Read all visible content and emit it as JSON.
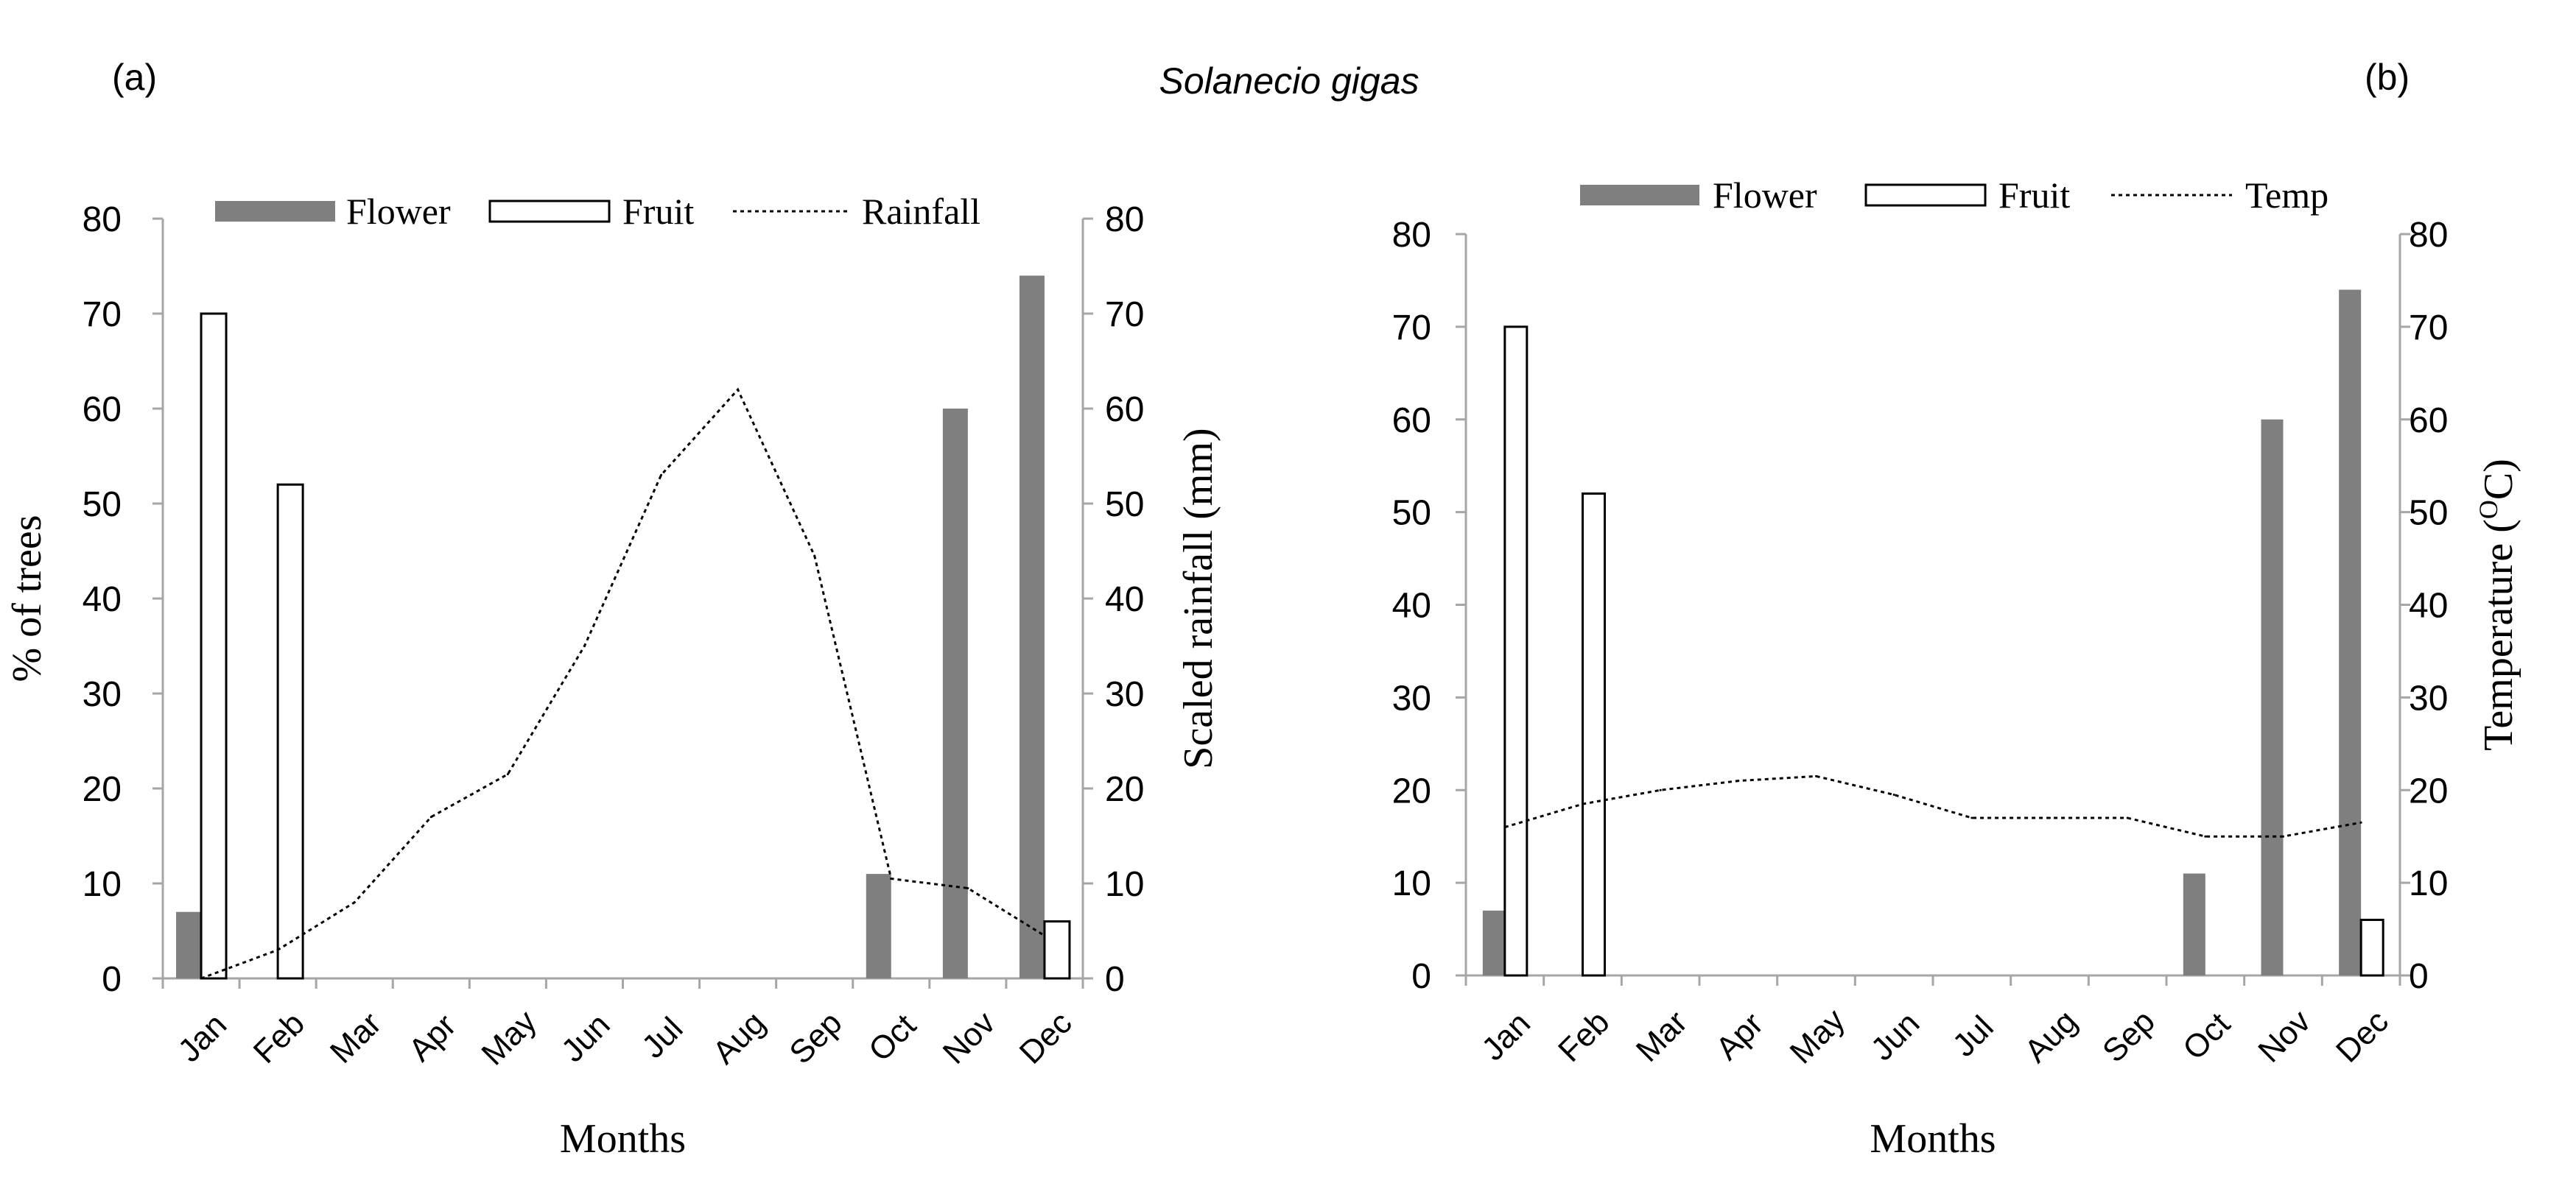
{
  "figure": {
    "title": "Solanecio gigas",
    "panel_a_label": "(a)",
    "panel_b_label": "(b)"
  },
  "chart_data": [
    {
      "type": "bar",
      "panel": "(a)",
      "categories": [
        "Jan",
        "Feb",
        "Mar",
        "Apr",
        "May",
        "Jun",
        "Jul",
        "Aug",
        "Sep",
        "Oct",
        "Nov",
        "Dec"
      ],
      "series": [
        {
          "name": "Flower",
          "kind": "bar",
          "axis": "left",
          "color": "#7f7f7f",
          "values": [
            7,
            0,
            0,
            0,
            0,
            0,
            0,
            0,
            0,
            11,
            60,
            74
          ]
        },
        {
          "name": "Fruit",
          "kind": "bar",
          "axis": "left",
          "color": "#ffffff",
          "values": [
            70,
            52,
            0,
            0,
            0,
            0,
            0,
            0,
            0,
            0,
            0,
            6
          ]
        },
        {
          "name": "Rainfall",
          "kind": "line",
          "axis": "right",
          "style": "dotted",
          "values": [
            0,
            3,
            8,
            17,
            21.5,
            35,
            53,
            62,
            44.5,
            10.5,
            9.5,
            4.5
          ]
        }
      ],
      "xlabel": "Months",
      "ylabel": "% of trees",
      "y2label": "Scaled rainfall (mm)",
      "ylim": [
        0,
        80
      ],
      "y2lim": [
        0,
        80
      ],
      "yticks": [
        "0",
        "10",
        "20",
        "30",
        "40",
        "50",
        "60",
        "70",
        "80"
      ],
      "legend": [
        "Flower",
        "Fruit",
        "Rainfall"
      ],
      "legend_position": "top"
    },
    {
      "type": "bar",
      "panel": "(b)",
      "categories": [
        "Jan",
        "Feb",
        "Mar",
        "Apr",
        "May",
        "Jun",
        "Jul",
        "Aug",
        "Sep",
        "Oct",
        "Nov",
        "Dec"
      ],
      "series": [
        {
          "name": "Flower",
          "kind": "bar",
          "axis": "left",
          "color": "#7f7f7f",
          "values": [
            7,
            0,
            0,
            0,
            0,
            0,
            0,
            0,
            0,
            11,
            60,
            74
          ]
        },
        {
          "name": "Fruit",
          "kind": "bar",
          "axis": "left",
          "color": "#ffffff",
          "values": [
            70,
            52,
            0,
            0,
            0,
            0,
            0,
            0,
            0,
            0,
            0,
            6
          ]
        },
        {
          "name": "Temp",
          "kind": "line",
          "axis": "right",
          "style": "dotted",
          "values": [
            16,
            18.5,
            20,
            21,
            21.5,
            19.5,
            17,
            17,
            17,
            15,
            15,
            16.5
          ]
        }
      ],
      "xlabel": "Months",
      "ylabel": "",
      "y2label": "Temperature (OC)",
      "y2label_text": "Temperature (",
      "y2label_sup": "O",
      "y2label_end": "C)",
      "ylim": [
        0,
        80
      ],
      "y2lim": [
        0,
        80
      ],
      "yticks": [
        "0",
        "10",
        "20",
        "30",
        "40",
        "50",
        "60",
        "70",
        "80"
      ],
      "legend": [
        "Flower",
        "Fruit",
        "Temp"
      ],
      "legend_position": "top"
    }
  ]
}
